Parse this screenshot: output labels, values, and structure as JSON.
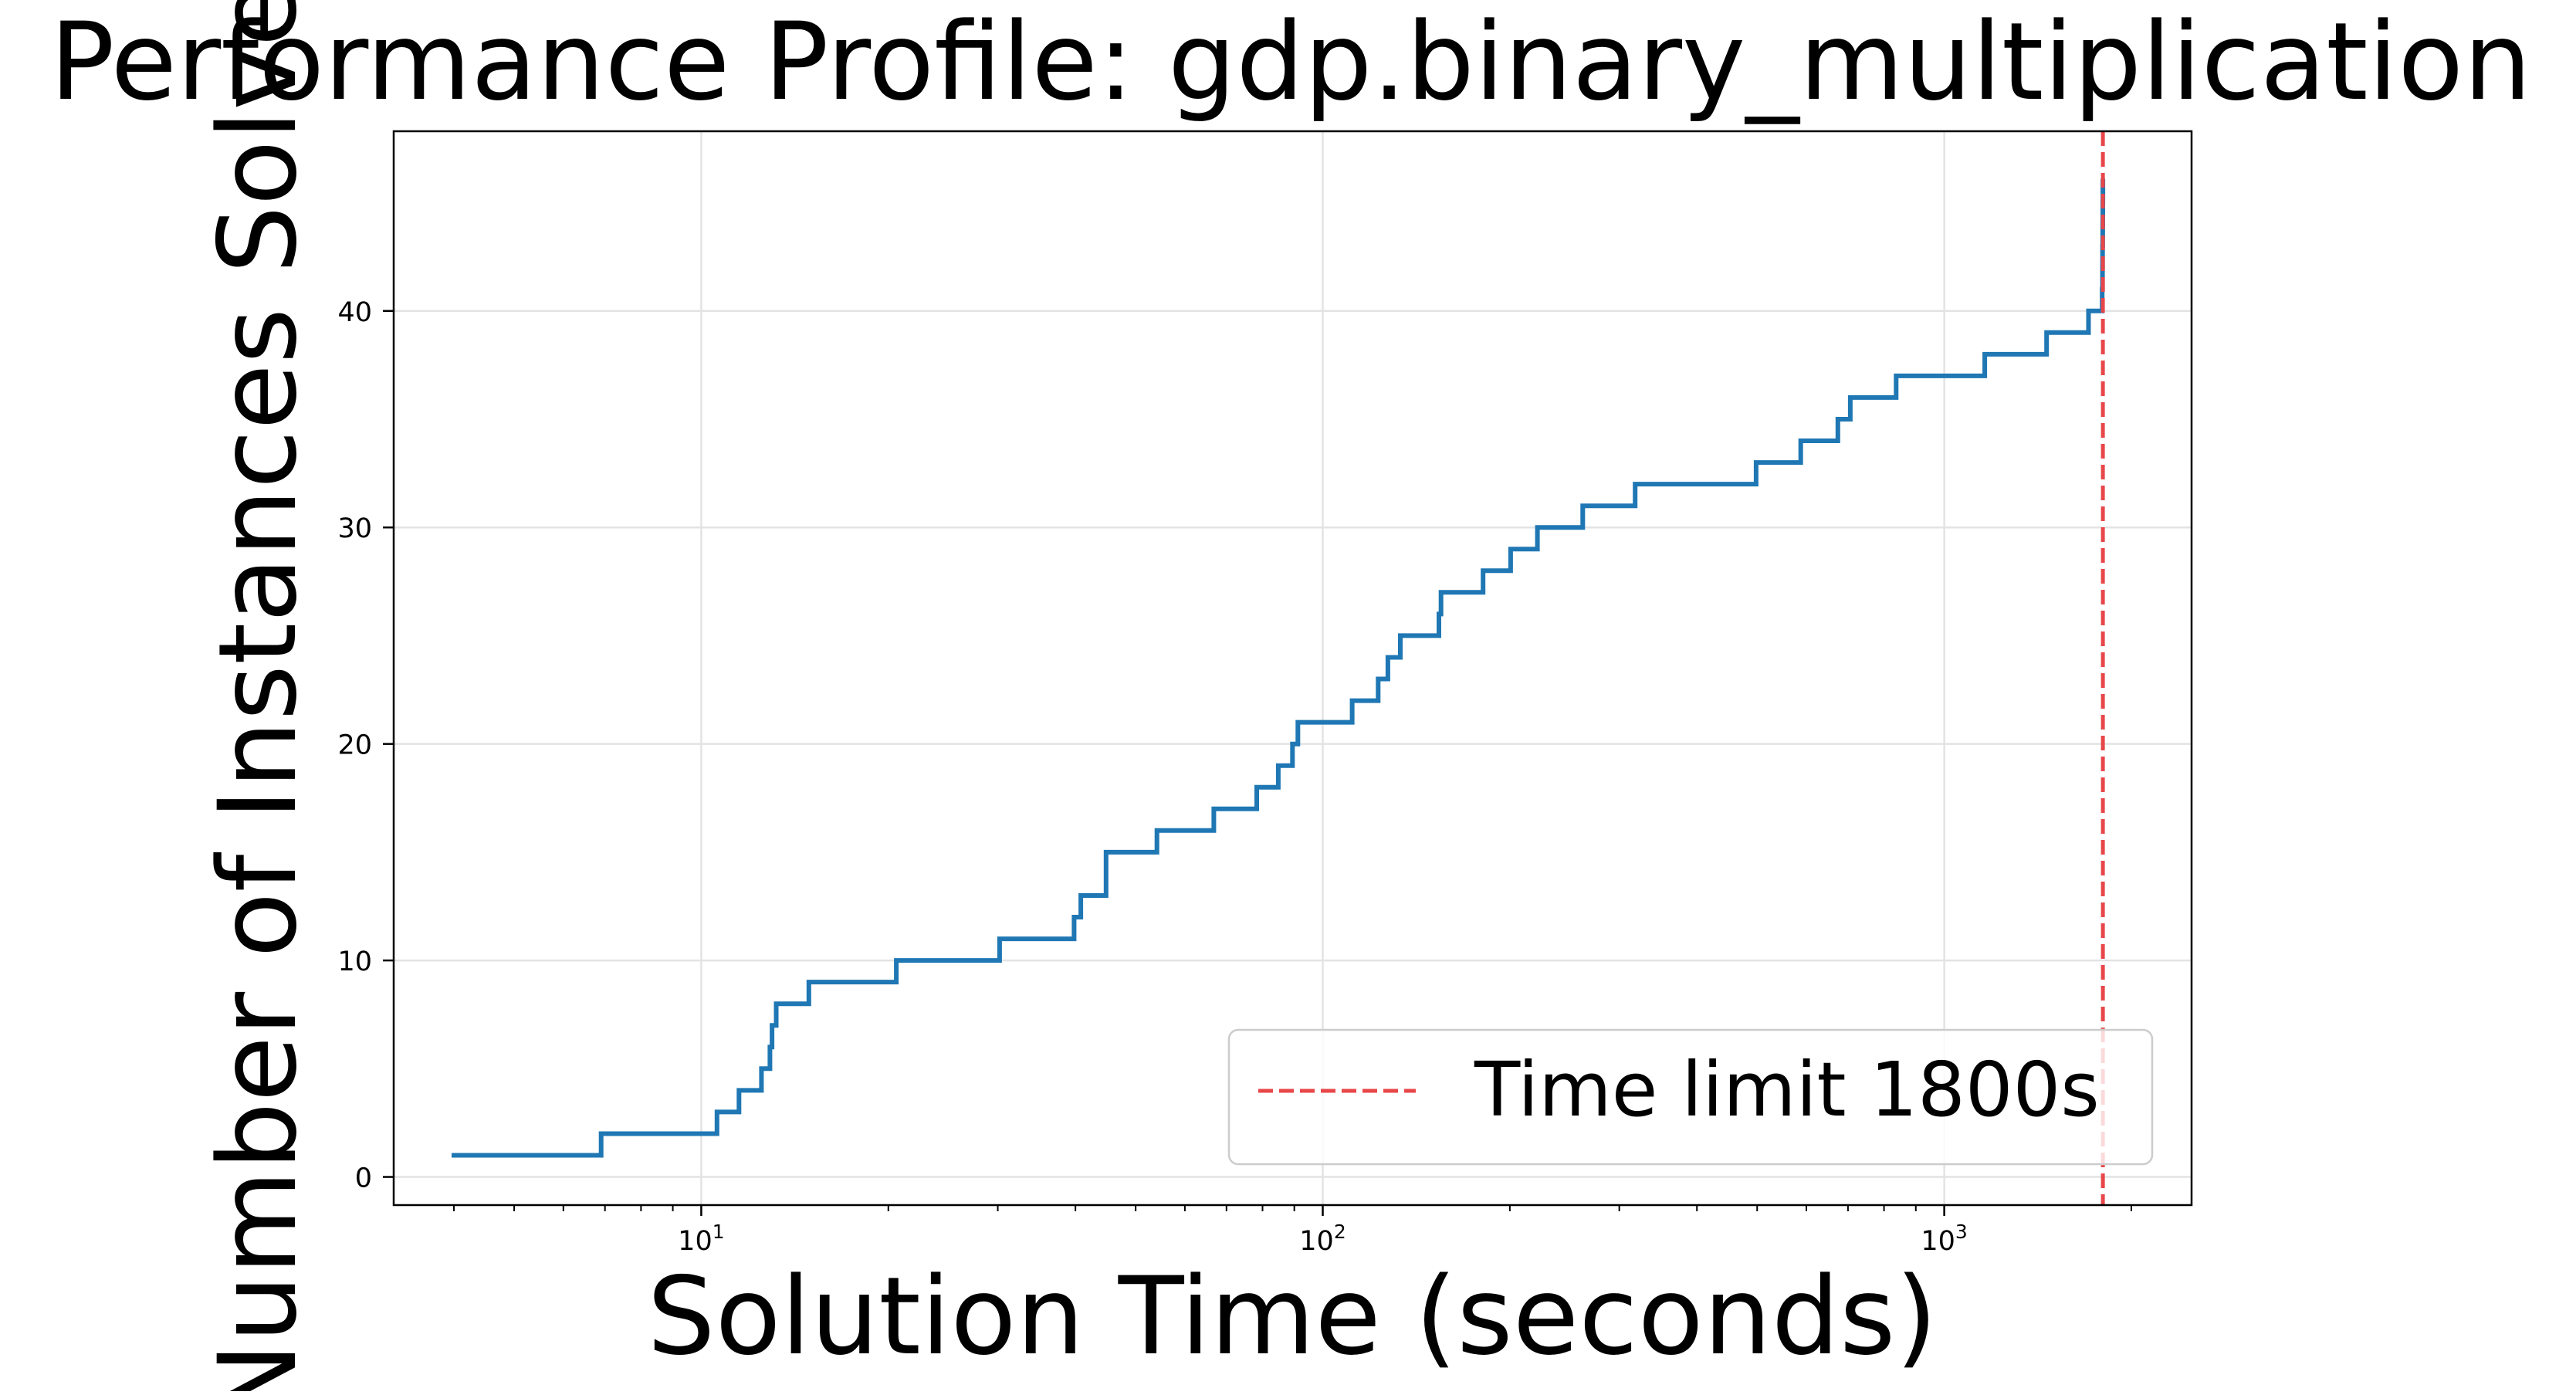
{
  "chart_data": {
    "type": "line",
    "title": "Performance Profile: gdp.binary_multiplication",
    "xlabel": "Solution Time (seconds)",
    "ylabel": "Number of Instances Solved",
    "x_scale": "log",
    "xlim": [
      3.2,
      2500
    ],
    "ylim": [
      -1.3,
      48.3
    ],
    "grid": true,
    "x_ticks": [
      {
        "value": 10,
        "base": "10",
        "exp": "1"
      },
      {
        "value": 100,
        "base": "10",
        "exp": "2"
      },
      {
        "value": 1000,
        "base": "10",
        "exp": "3"
      }
    ],
    "y_ticks": [
      0,
      10,
      20,
      30,
      40
    ],
    "series": [
      {
        "name": "",
        "color": "#1f77b4",
        "drawstyle": "steps-post",
        "x": [
          4.0,
          6.9,
          10.6,
          11.5,
          12.5,
          12.9,
          13.0,
          13.2,
          14.9,
          20.6,
          30.2,
          39.8,
          40.8,
          44.8,
          54.1,
          66.8,
          78.3,
          84.8,
          89.4,
          91.2,
          111.5,
          122.8,
          127.3,
          133.3,
          153.8,
          155.0,
          181.1,
          200.6,
          221.5,
          262.0,
          318.2,
          498.1,
          587.6,
          674.3,
          706.0,
          836.7,
          1162.0,
          1461.2,
          1706.7,
          1795.0,
          1797.0,
          1798.0,
          1799.0,
          1799.5,
          1800.0
        ],
        "y": [
          1,
          2,
          3,
          4,
          5,
          6,
          7,
          8,
          9,
          10,
          11,
          12,
          13,
          15,
          16,
          17,
          18,
          19,
          20,
          21,
          22,
          23,
          24,
          25,
          26,
          27,
          28,
          29,
          30,
          31,
          32,
          33,
          34,
          35,
          36,
          37,
          38,
          39,
          40,
          41,
          42,
          43,
          44,
          45,
          46
        ]
      }
    ],
    "reference_lines": [
      {
        "orientation": "vertical",
        "x": 1800,
        "color": "#e8474a",
        "style": "dashed",
        "label": "Time limit 1800s"
      }
    ],
    "legend": {
      "placement": "lower-right",
      "entries": [
        "Time limit 1800s"
      ]
    }
  }
}
